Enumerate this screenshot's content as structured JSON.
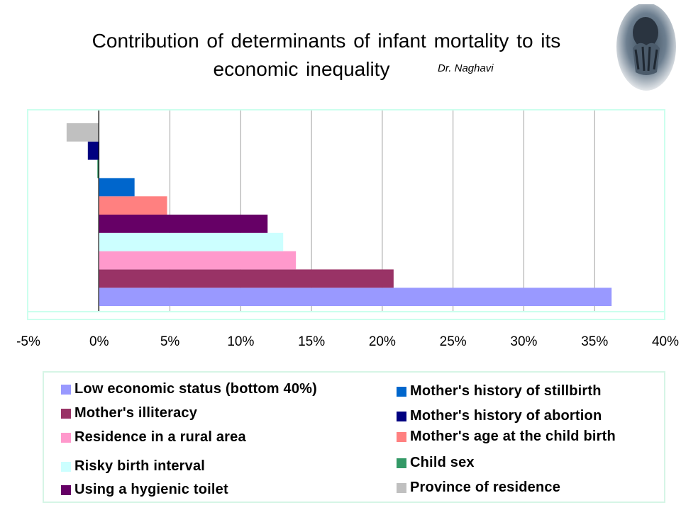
{
  "title": {
    "line1": "Contribution of determinants of infant mortality to its",
    "line2": "economic inequality",
    "author": "Dr. Naghavi"
  },
  "chart_data": {
    "type": "bar",
    "orientation": "horizontal",
    "title": "Contribution of determinants of infant mortality to its economic inequality",
    "xlabel": "",
    "ylabel": "",
    "xlim": [
      -5,
      40
    ],
    "x_ticks": [
      "-5%",
      "0%",
      "5%",
      "10%",
      "15%",
      "20%",
      "25%",
      "30%",
      "35%",
      "40%"
    ],
    "grid": "vertical",
    "legend_position": "bottom",
    "series": [
      {
        "name": "Low economic status (bottom 40%)",
        "value": 36.2,
        "color": "#9999ff"
      },
      {
        "name": "Mother's illiteracy",
        "value": 20.8,
        "color": "#993366"
      },
      {
        "name": "Residence in a rural area",
        "value": 13.9,
        "color": "#ff99cc"
      },
      {
        "name": "Risky birth interval",
        "value": 13.0,
        "color": "#ccffff"
      },
      {
        "name": "Using a hygienic toilet",
        "value": 11.9,
        "color": "#660066"
      },
      {
        "name": "Mother's age at the child birth",
        "value": 4.8,
        "color": "#ff8080"
      },
      {
        "name": "Mother's history of stillbirth",
        "value": 2.5,
        "color": "#0066cc"
      },
      {
        "name": "Child sex",
        "value": -0.1,
        "color": "#339966"
      },
      {
        "name": "Mother's history of abortion",
        "value": -0.8,
        "color": "#000080"
      },
      {
        "name": "Province of residence",
        "value": -2.3,
        "color": "#c0c0c0"
      }
    ]
  },
  "legend": {
    "left_column": [
      "Low economic status (bottom 40%)",
      "Mother's illiteracy",
      "Residence in a rural area",
      "Risky birth interval",
      "Using a hygienic toilet"
    ],
    "right_column": [
      "Mother's history of stillbirth",
      "Mother's history of abortion",
      "Mother's age at the child birth",
      "Child sex",
      "Province of residence"
    ]
  }
}
